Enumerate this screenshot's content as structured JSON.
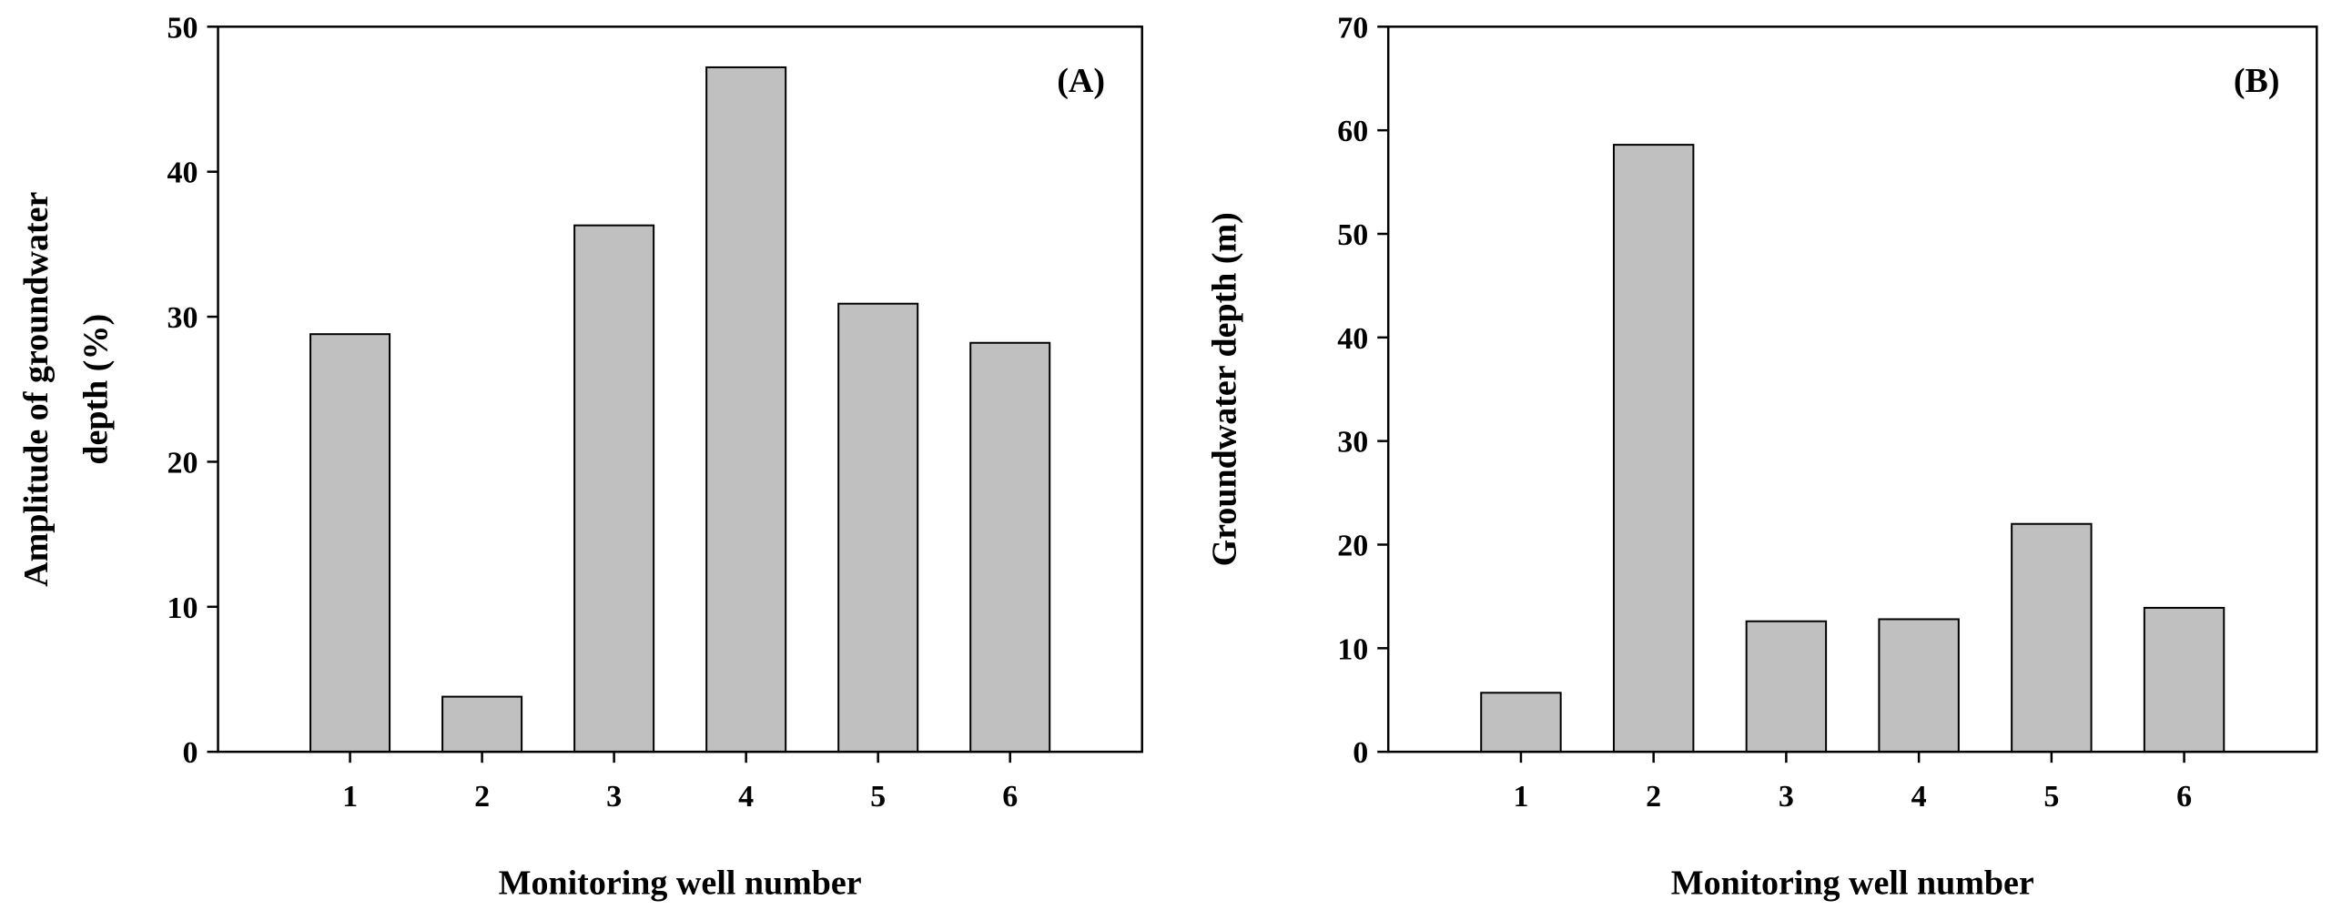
{
  "chart_data": [
    {
      "type": "bar",
      "panel_label": "(A)",
      "categories": [
        "1",
        "2",
        "3",
        "4",
        "5",
        "6"
      ],
      "values": [
        28.8,
        3.8,
        36.3,
        47.2,
        30.9,
        28.2
      ],
      "xlabel": "Monitoring well number",
      "ylabel": "Amplitude of groundwater depth (%)",
      "ylabel_lines": [
        "Amplitude of groundwater",
        "depth (%)"
      ],
      "ylim": [
        0,
        50
      ],
      "yticks": [
        0,
        10,
        20,
        30,
        40,
        50
      ],
      "grid": false,
      "bar_color": "#c0c0c0"
    },
    {
      "type": "bar",
      "panel_label": "(B)",
      "categories": [
        "1",
        "2",
        "3",
        "4",
        "5",
        "6"
      ],
      "values": [
        5.7,
        58.6,
        12.6,
        12.8,
        22.0,
        13.9
      ],
      "xlabel": "Monitoring well number",
      "ylabel": "Groundwater depth (m)",
      "ylabel_lines": [
        "Groundwater depth (m)"
      ],
      "ylim": [
        0,
        70
      ],
      "yticks": [
        0,
        10,
        20,
        30,
        40,
        50,
        60,
        70
      ],
      "grid": false,
      "bar_color": "#c0c0c0"
    }
  ]
}
